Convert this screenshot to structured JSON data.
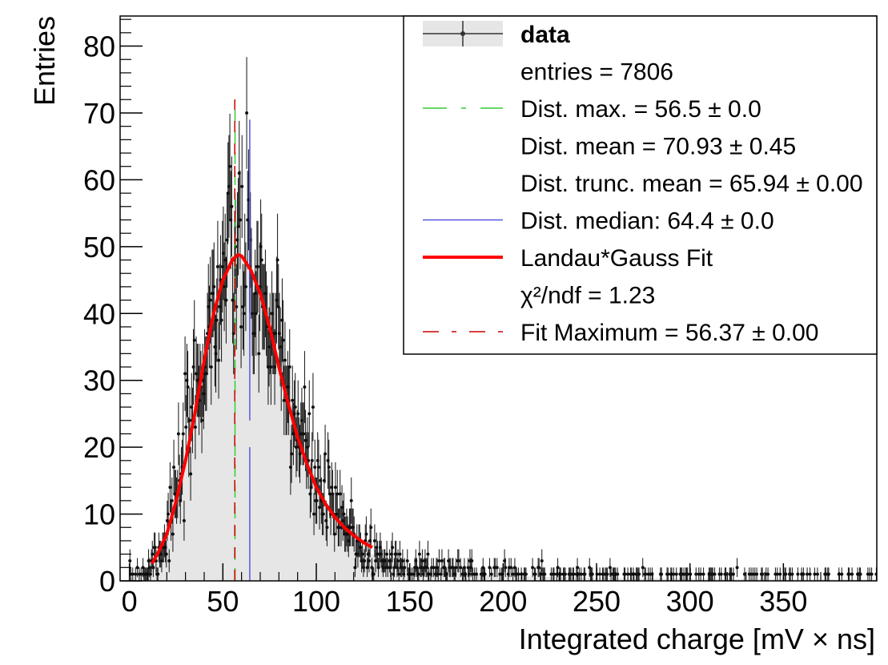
{
  "chart_data": {
    "type": "histogram",
    "xlabel": "Integrated charge [mV × ns]",
    "ylabel": "Entries",
    "xlim": [
      -5,
      400
    ],
    "ylim": [
      0,
      84.5
    ],
    "x_ticks": [
      0,
      50,
      100,
      150,
      200,
      250,
      300,
      350
    ],
    "y_ticks": [
      0,
      10,
      20,
      30,
      40,
      50,
      60,
      70,
      80
    ],
    "grid": false,
    "legend_position": "top-right",
    "colors": {
      "data": "#000000",
      "fill": "#e6e6e6",
      "dist_max": "#33cc33",
      "median": "#5555dd",
      "fit": "#ff0000",
      "fit_max": "#cc0000"
    },
    "envelope": {
      "x": [
        0,
        5,
        10,
        15,
        20,
        25,
        30,
        35,
        40,
        45,
        50,
        55,
        58,
        60,
        65,
        70,
        75,
        80,
        85,
        90,
        95,
        100,
        105,
        110,
        115,
        120,
        125,
        130,
        135,
        140,
        145,
        150,
        160,
        170,
        180,
        190,
        200,
        210,
        220,
        230,
        240,
        250,
        260,
        270,
        280,
        290,
        300,
        310,
        320,
        330,
        340,
        350,
        360,
        370,
        380,
        390,
        400
      ],
      "y": [
        0.3,
        1,
        2,
        4,
        7,
        12,
        19,
        27,
        34,
        40,
        45,
        48,
        49,
        48,
        46,
        42,
        38,
        33,
        28,
        23,
        19,
        15,
        12,
        10,
        8,
        6.5,
        5,
        4,
        3.2,
        2.7,
        2.3,
        2,
        1.6,
        1.3,
        1.1,
        0.9,
        0.8,
        0.7,
        0.6,
        0.55,
        0.5,
        0.45,
        0.42,
        0.4,
        0.38,
        0.36,
        0.34,
        0.32,
        0.3,
        0.28,
        0.27,
        0.26,
        0.25,
        0.24,
        0.23,
        0.22,
        0.21
      ]
    },
    "dist_max": {
      "x": 56.5,
      "y": 72
    },
    "median": {
      "x": 64.4,
      "y_top": 69,
      "gap": [
        20,
        24
      ]
    },
    "fit_curve": {
      "x": [
        12,
        15,
        20,
        25,
        30,
        35,
        40,
        45,
        50,
        55,
        58,
        60,
        65,
        70,
        75,
        80,
        85,
        90,
        95,
        100,
        105,
        110,
        115,
        120,
        125,
        130
      ],
      "y": [
        2.6,
        4,
        7,
        12,
        18,
        25,
        33,
        40,
        45,
        48,
        48.8,
        48.6,
        46.5,
        43,
        38,
        32,
        26.5,
        21.5,
        17.5,
        14,
        11.5,
        9.5,
        8,
        6.8,
        5.8,
        5
      ]
    },
    "fit_max": {
      "x": 56.37,
      "y": 72
    }
  },
  "legend": {
    "items": [
      {
        "text": "data",
        "bold": true,
        "marker": "errorbar"
      },
      {
        "text": "entries = 7806",
        "marker": "none"
      },
      {
        "text": "Dist. max. = 56.5 ± 0.0",
        "marker": "dashed-green"
      },
      {
        "text": "Dist. mean = 70.93 ± 0.45",
        "marker": "none"
      },
      {
        "text": "Dist. trunc. mean = 65.94 ± 0.00",
        "marker": "none"
      },
      {
        "text": "Dist. median: 64.4 ± 0.0",
        "marker": "solid-blue"
      },
      {
        "text": "Landau*Gauss Fit",
        "marker": "solid-red"
      },
      {
        "text": "χ²/ndf = 1.23",
        "marker": "none"
      },
      {
        "text": "Fit Maximum = 56.37 ± 0.00",
        "marker": "dashed-red"
      }
    ]
  }
}
